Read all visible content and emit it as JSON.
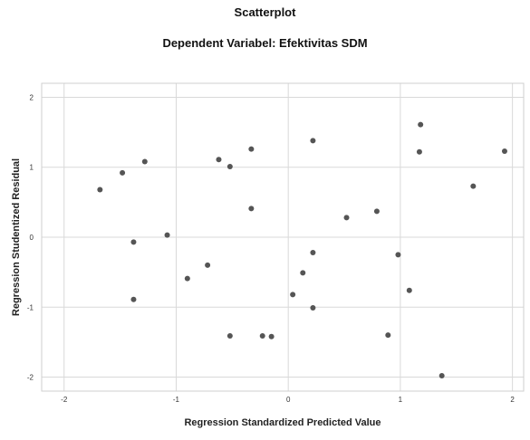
{
  "chart_data": {
    "type": "scatter",
    "title": "Scatterplot",
    "subtitle": "Dependent Variabel: Efektivitas SDM",
    "xlabel": "Regression Standardized Predicted Value",
    "ylabel": "Regression Studentized Residual",
    "xlim": [
      -2.2,
      2.1
    ],
    "ylim": [
      -2.2,
      2.2
    ],
    "xticks": [
      -2,
      -1,
      0,
      1,
      2
    ],
    "yticks": [
      -2,
      -1,
      0,
      1,
      2
    ],
    "grid": true,
    "marker_color": "#555555",
    "points": [
      {
        "x": -1.68,
        "y": 0.68
      },
      {
        "x": -1.48,
        "y": 0.92
      },
      {
        "x": -1.28,
        "y": 1.08
      },
      {
        "x": -1.38,
        "y": -0.07
      },
      {
        "x": -1.38,
        "y": -0.89
      },
      {
        "x": -1.08,
        "y": 0.03
      },
      {
        "x": -0.9,
        "y": -0.59
      },
      {
        "x": -0.72,
        "y": -0.4
      },
      {
        "x": -0.62,
        "y": 1.11
      },
      {
        "x": -0.52,
        "y": 1.01
      },
      {
        "x": -0.52,
        "y": -1.41
      },
      {
        "x": -0.33,
        "y": 1.26
      },
      {
        "x": -0.33,
        "y": 0.41
      },
      {
        "x": -0.23,
        "y": -1.41
      },
      {
        "x": -0.15,
        "y": -1.42
      },
      {
        "x": 0.04,
        "y": -0.82
      },
      {
        "x": 0.13,
        "y": -0.51
      },
      {
        "x": 0.22,
        "y": 1.38
      },
      {
        "x": 0.22,
        "y": -0.22
      },
      {
        "x": 0.22,
        "y": -1.01
      },
      {
        "x": 0.52,
        "y": 0.28
      },
      {
        "x": 0.79,
        "y": 0.37
      },
      {
        "x": 0.89,
        "y": -1.4
      },
      {
        "x": 0.98,
        "y": -0.25
      },
      {
        "x": 1.08,
        "y": -0.76
      },
      {
        "x": 1.17,
        "y": 1.22
      },
      {
        "x": 1.18,
        "y": 1.61
      },
      {
        "x": 1.37,
        "y": -1.98
      },
      {
        "x": 1.65,
        "y": 0.73
      },
      {
        "x": 1.93,
        "y": 1.23
      }
    ]
  }
}
